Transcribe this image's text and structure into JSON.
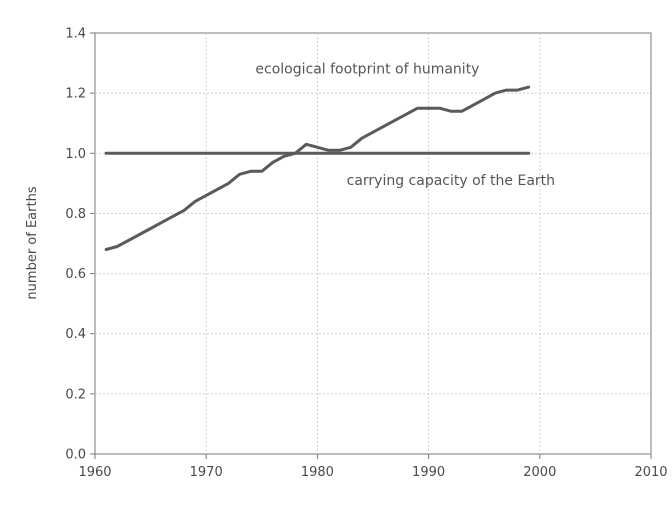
{
  "chart_data": {
    "type": "line",
    "title": "",
    "xlabel": "",
    "ylabel": "number of Earths",
    "xlim": [
      1960,
      2010
    ],
    "ylim": [
      0.0,
      1.4
    ],
    "x_ticks": [
      "1960",
      "1970",
      "1980",
      "1990",
      "2000",
      "2010"
    ],
    "y_ticks": [
      "0.0",
      "0.2",
      "0.4",
      "0.6",
      "0.8",
      "1.0",
      "1.2",
      "1.4"
    ],
    "grid": true,
    "legend": "none",
    "colors": {
      "line": "#5a5a5a",
      "grid": "#cfcfcf",
      "axis": "#7a7a7a"
    },
    "series": [
      {
        "name": "ecological footprint of humanity",
        "x": [
          1961,
          1962,
          1963,
          1964,
          1965,
          1966,
          1967,
          1968,
          1969,
          1970,
          1971,
          1972,
          1973,
          1974,
          1975,
          1976,
          1977,
          1978,
          1979,
          1980,
          1981,
          1982,
          1983,
          1984,
          1985,
          1986,
          1987,
          1988,
          1989,
          1990,
          1991,
          1992,
          1993,
          1994,
          1995,
          1996,
          1997,
          1998,
          1999
        ],
        "y": [
          0.68,
          0.69,
          0.71,
          0.73,
          0.75,
          0.77,
          0.79,
          0.81,
          0.84,
          0.86,
          0.88,
          0.9,
          0.93,
          0.94,
          0.94,
          0.97,
          0.99,
          1.0,
          1.03,
          1.02,
          1.01,
          1.01,
          1.02,
          1.05,
          1.07,
          1.09,
          1.11,
          1.13,
          1.15,
          1.15,
          1.15,
          1.14,
          1.14,
          1.16,
          1.18,
          1.2,
          1.21,
          1.21,
          1.22
        ]
      },
      {
        "name": "carrying capacity of the Earth",
        "x": [
          1961,
          1999
        ],
        "y": [
          1.0,
          1.0
        ]
      }
    ],
    "annotations": [
      {
        "text": "ecological footprint of humanity",
        "x": 1984.5,
        "y": 1.265
      },
      {
        "text": "carrying capacity of the Earth",
        "x": 1992,
        "y": 0.895
      }
    ]
  }
}
